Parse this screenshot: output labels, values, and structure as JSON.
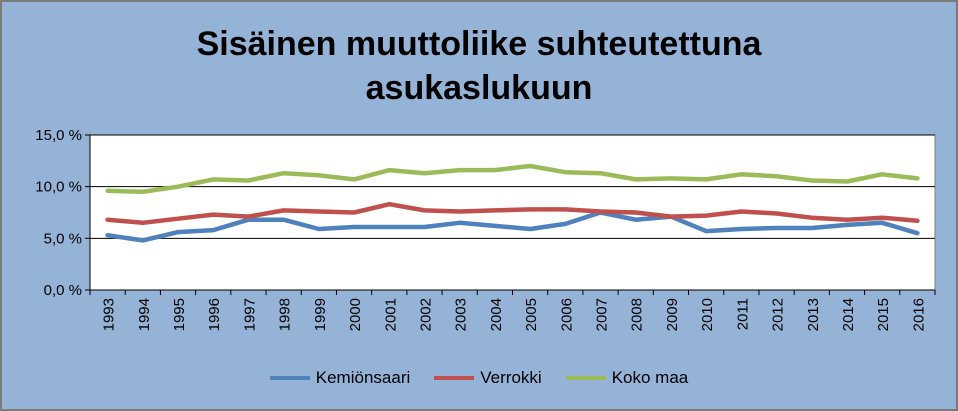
{
  "chart_data": {
    "type": "line",
    "title_lines": [
      "Sisäinen muuttoliike suhteutettuna",
      "asukaslukuun"
    ],
    "xlabel": "",
    "ylabel": "",
    "ylim": [
      0,
      15
    ],
    "yticks": [
      0,
      5,
      10,
      15
    ],
    "ytick_labels": [
      "0,0 %",
      "5,0 %",
      "10,0 %",
      "15,0 %"
    ],
    "grid": true,
    "legend_position": "bottom",
    "categories": [
      "1993",
      "1994",
      "1995",
      "1996",
      "1997",
      "1998",
      "1999",
      "2000",
      "2001",
      "2002",
      "2003",
      "2004",
      "2005",
      "2006",
      "2007",
      "2008",
      "2009",
      "2010",
      "2011",
      "2012",
      "2013",
      "2014",
      "2015",
      "2016"
    ],
    "series": [
      {
        "name": "Kemiönsaari",
        "color": "#4f81bd",
        "values": [
          5.3,
          4.8,
          5.6,
          5.8,
          6.8,
          6.8,
          5.9,
          6.1,
          6.1,
          6.1,
          6.5,
          6.2,
          5.9,
          6.4,
          7.5,
          6.8,
          7.1,
          5.7,
          5.9,
          6.0,
          6.0,
          6.3,
          6.5,
          5.5
        ]
      },
      {
        "name": "Verrokki",
        "color": "#c0504d",
        "values": [
          6.8,
          6.5,
          6.9,
          7.3,
          7.1,
          7.7,
          7.6,
          7.5,
          8.3,
          7.7,
          7.6,
          7.7,
          7.8,
          7.8,
          7.6,
          7.5,
          7.1,
          7.2,
          7.6,
          7.4,
          7.0,
          6.8,
          7.0,
          6.7
        ]
      },
      {
        "name": "Koko maa",
        "color": "#9bbb59",
        "values": [
          9.6,
          9.5,
          10.0,
          10.7,
          10.6,
          11.3,
          11.1,
          10.7,
          11.6,
          11.3,
          11.6,
          11.6,
          12.0,
          11.4,
          11.3,
          10.7,
          10.8,
          10.7,
          11.2,
          11.0,
          10.6,
          10.5,
          11.2,
          10.8
        ]
      }
    ]
  },
  "colors": {
    "chart_background": "#95b3d7",
    "plot_background": "#ffffff",
    "gridline": "#000000"
  }
}
